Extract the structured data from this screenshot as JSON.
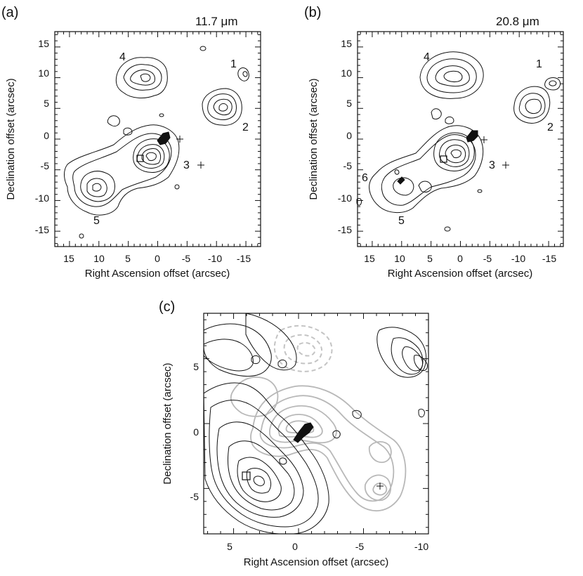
{
  "panels": {
    "a": {
      "letter": "(a)",
      "wavelength": "11.7 μm",
      "xlabel": "Right Ascension offset (arcsec)",
      "ylabel": "Declination offset (arcsec)",
      "xticks": [
        "15",
        "10",
        "5",
        "0",
        "-5",
        "-10",
        "-15"
      ],
      "yticks": [
        "15",
        "10",
        "5",
        "0",
        "-5",
        "-10",
        "-15"
      ],
      "sources": [
        "1",
        "2",
        "3",
        "4",
        "5"
      ]
    },
    "b": {
      "letter": "(b)",
      "wavelength": "20.8 μm",
      "xlabel": "Right Ascension offset (arcsec)",
      "ylabel": "Declination offset (arcsec)",
      "xticks": [
        "15",
        "10",
        "5",
        "0",
        "-5",
        "-10",
        "-15"
      ],
      "yticks": [
        "15",
        "10",
        "5",
        "0",
        "-5",
        "-10",
        "-15"
      ],
      "sources": [
        "1",
        "2",
        "3",
        "4",
        "5",
        "6"
      ]
    },
    "c": {
      "letter": "(c)",
      "xlabel": "Right Ascension offset (arcsec)",
      "ylabel": "Declination offset (arcsec)",
      "xticks": [
        "5",
        "0",
        "-5",
        "-10"
      ],
      "yticks": [
        "5",
        "0",
        "-5"
      ]
    }
  }
}
